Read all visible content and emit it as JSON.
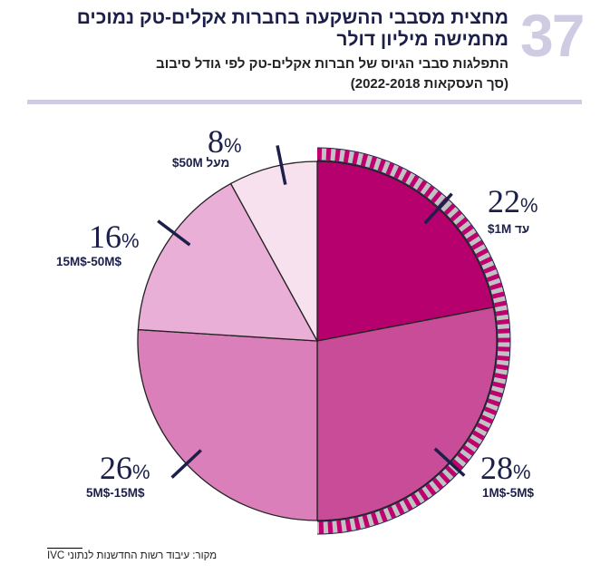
{
  "header": {
    "figure_number": "37",
    "title_line1": "מחצית מסבבי ההשקעה בחברות אקלים-טק נמוכים",
    "title_line2": "מחמישה מיליון דולר",
    "subtitle_line1": "התפלגות סבבי הגיוס של חברות אקלים-טק לפי גודל סיבוב",
    "subtitle_line2": "(סך העסקאות 2022-2018)"
  },
  "chart_data": {
    "type": "pie",
    "start_angle": "top",
    "direction": "clockwise",
    "categories": [
      "עד 1M$",
      "1M$-5M$",
      "5M$-15M$",
      "15M$-50M$",
      "מעל 50M$"
    ],
    "values": [
      22,
      28,
      26,
      16,
      8
    ],
    "value_labels": [
      "22",
      "28",
      "26",
      "16",
      "8"
    ],
    "unit": "%",
    "colors": [
      "#b5006e",
      "#c94c98",
      "#da7fba",
      "#e9afd6",
      "#f8e1ef"
    ],
    "highlight": {
      "covers_categories": [
        "עד 1M$",
        "1M$-5M$"
      ],
      "style": "hatched ring",
      "colors": [
        "#c0006f",
        "#bfc3c3"
      ]
    }
  },
  "source": "מקור: עיבוד רשות החדשנות לנתוני IVC"
}
